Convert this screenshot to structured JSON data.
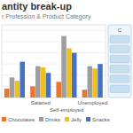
{
  "chart_data": {
    "type": "bar",
    "title": "antity break-up",
    "subtitle": "r Profession & Product Category",
    "categories": [
      null,
      "Salaried",
      "Self-employed",
      "Unemployed"
    ],
    "series": [
      {
        "name": "Chocolates",
        "color": "#e8762e",
        "values": [
          0.08,
          0.1,
          0.14,
          0.07
        ]
      },
      {
        "name": "Drinks",
        "color": "#9e9e9e",
        "values": [
          0.18,
          0.28,
          0.55,
          0.28
        ]
      },
      {
        "name": "Jelly",
        "color": "#f0c020",
        "values": [
          0.15,
          0.27,
          0.44,
          0.26
        ]
      },
      {
        "name": "Snacks",
        "color": "#4472c4",
        "values": [
          0.32,
          0.22,
          0.4,
          0.3
        ]
      }
    ],
    "ylim": [
      0,
      0.65
    ],
    "yticks": [
      0.1,
      0.2,
      0.3,
      0.4,
      0.5,
      0.6
    ],
    "grid": true,
    "tick_labels": "x",
    "legend": "bottom",
    "annotations": [
      "C"
    ]
  }
}
